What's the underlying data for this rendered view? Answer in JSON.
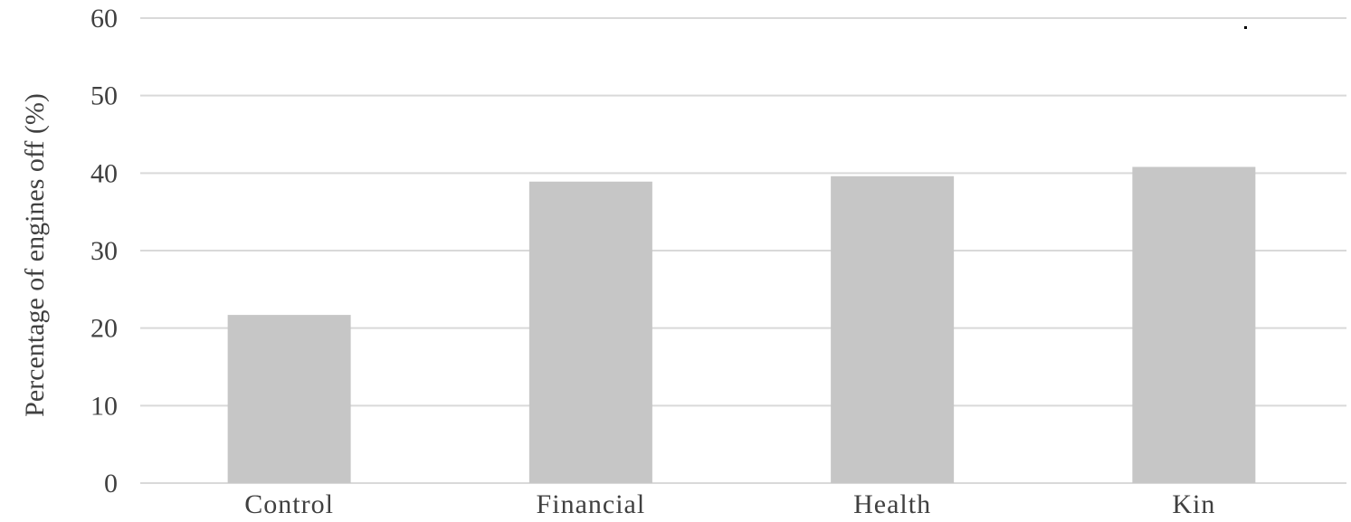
{
  "chart_data": {
    "type": "bar",
    "title": "",
    "xlabel": "",
    "ylabel": "Percentage of engines off (%)",
    "categories": [
      "Control",
      "Financial",
      "Health",
      "Kin"
    ],
    "values": [
      21.7,
      38.9,
      39.6,
      40.8
    ],
    "ylim": [
      0,
      60
    ],
    "yticks": [
      0,
      10,
      20,
      30,
      40,
      50,
      60
    ],
    "grid": true,
    "legend": "none",
    "colors": {
      "bar": "#c6c6c6",
      "grid": "#d9d9d9",
      "text": "#404040"
    }
  }
}
